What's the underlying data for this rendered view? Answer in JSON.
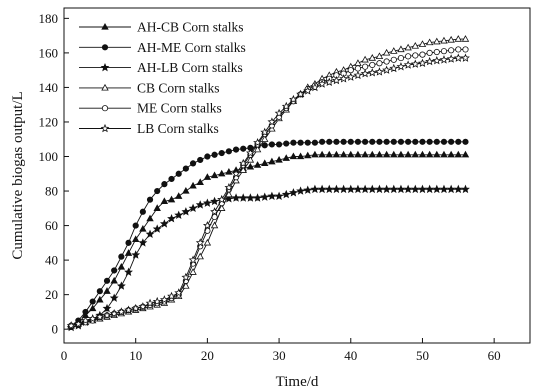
{
  "chart_data": {
    "type": "line",
    "title": "",
    "xlabel": "Time/d",
    "ylabel": "Cumulative biogas output/L",
    "xlim": [
      0,
      65
    ],
    "ylim": [
      -8,
      186
    ],
    "xticks": [
      0,
      10,
      20,
      30,
      40,
      50,
      60
    ],
    "yticks": [
      0,
      20,
      40,
      60,
      80,
      100,
      120,
      140,
      160,
      180
    ],
    "grid": false,
    "legend_position": "top-left",
    "series": [
      {
        "name": "AH-CB Corn stalks",
        "marker": "triangle-filled",
        "x": [
          1,
          2,
          3,
          4,
          5,
          6,
          7,
          8,
          9,
          10,
          11,
          12,
          13,
          14,
          15,
          16,
          17,
          18,
          19,
          20,
          21,
          22,
          23,
          24,
          25,
          26,
          27,
          28,
          29,
          30,
          31,
          32,
          33,
          34,
          35,
          36,
          37,
          38,
          39,
          40,
          41,
          42,
          43,
          44,
          45,
          46,
          47,
          48,
          49,
          50,
          51,
          52,
          53,
          54,
          55,
          56
        ],
        "y": [
          2,
          4,
          8,
          12,
          17,
          22,
          28,
          36,
          44,
          52,
          58,
          64,
          70,
          74,
          75,
          77,
          80,
          83,
          85,
          88,
          89,
          90,
          91,
          92,
          93,
          94,
          95,
          96,
          97,
          98,
          99,
          100,
          100,
          100.5,
          101,
          101,
          101,
          101,
          101,
          101,
          101,
          101,
          101,
          101,
          101,
          101,
          101,
          101,
          101,
          101,
          101,
          101,
          101,
          101,
          101,
          101
        ]
      },
      {
        "name": "AH-ME Corn stalks",
        "marker": "circle-filled",
        "x": [
          1,
          2,
          3,
          4,
          5,
          6,
          7,
          8,
          9,
          10,
          11,
          12,
          13,
          14,
          15,
          16,
          17,
          18,
          19,
          20,
          21,
          22,
          23,
          24,
          25,
          26,
          27,
          28,
          29,
          30,
          31,
          32,
          33,
          34,
          35,
          36,
          37,
          38,
          39,
          40,
          41,
          42,
          43,
          44,
          45,
          46,
          47,
          48,
          49,
          50,
          51,
          52,
          53,
          54,
          55,
          56
        ],
        "y": [
          2,
          5,
          10,
          16,
          22,
          28,
          34,
          42,
          50,
          60,
          68,
          75,
          80,
          84,
          87,
          90,
          93,
          96,
          98,
          100,
          101,
          102,
          103,
          104,
          104.5,
          105,
          106,
          106.5,
          107,
          107,
          107.5,
          108,
          108,
          108,
          108,
          108.5,
          108.5,
          108.5,
          108.5,
          108.5,
          108.5,
          108.5,
          108.5,
          108.5,
          108.5,
          108.5,
          108.5,
          108.5,
          108.5,
          108.5,
          108.5,
          108.5,
          108.5,
          108.5,
          108.5,
          108.5
        ]
      },
      {
        "name": "AH-LB Corn stalks",
        "marker": "star-filled",
        "x": [
          1,
          2,
          3,
          4,
          5,
          6,
          7,
          8,
          9,
          10,
          11,
          12,
          13,
          14,
          15,
          16,
          17,
          18,
          19,
          20,
          21,
          22,
          23,
          24,
          25,
          26,
          27,
          28,
          29,
          30,
          31,
          32,
          33,
          34,
          35,
          36,
          37,
          38,
          39,
          40,
          41,
          42,
          43,
          44,
          45,
          46,
          47,
          48,
          49,
          50,
          51,
          52,
          53,
          54,
          55,
          56
        ],
        "y": [
          1,
          2,
          4,
          6,
          8,
          12,
          18,
          25,
          33,
          43,
          50,
          55,
          58,
          61,
          64,
          66,
          68,
          70,
          72,
          73,
          74,
          75,
          75.5,
          76,
          76,
          76,
          76,
          76.5,
          77,
          77,
          78,
          79,
          80,
          80.5,
          81,
          81,
          81,
          81,
          81,
          81,
          81,
          81,
          81,
          81,
          81,
          81,
          81,
          81,
          81,
          81,
          81,
          81,
          81,
          81,
          81,
          81
        ]
      },
      {
        "name": "CB Corn stalks",
        "marker": "triangle-open",
        "x": [
          1,
          2,
          3,
          4,
          5,
          6,
          7,
          8,
          9,
          10,
          11,
          12,
          13,
          14,
          15,
          16,
          17,
          18,
          19,
          20,
          21,
          22,
          23,
          24,
          25,
          26,
          27,
          28,
          29,
          30,
          31,
          32,
          33,
          34,
          35,
          36,
          37,
          38,
          39,
          40,
          41,
          42,
          43,
          44,
          45,
          46,
          47,
          48,
          49,
          50,
          51,
          52,
          53,
          54,
          55,
          56
        ],
        "y": [
          2,
          3,
          4,
          5,
          6,
          7,
          8,
          9,
          10,
          11,
          12,
          13,
          14,
          15,
          17,
          19,
          25,
          33,
          42,
          50,
          60,
          70,
          78,
          86,
          92,
          98,
          104,
          110,
          116,
          122,
          127,
          132,
          136,
          140,
          142,
          145,
          147,
          149,
          150,
          152,
          154,
          156,
          157,
          158,
          160,
          161,
          162,
          163,
          164,
          165,
          166,
          166.5,
          167,
          167.5,
          168,
          168
        ]
      },
      {
        "name": "ME Corn stalks",
        "marker": "circle-open",
        "x": [
          1,
          2,
          3,
          4,
          5,
          6,
          7,
          8,
          9,
          10,
          11,
          12,
          13,
          14,
          15,
          16,
          17,
          18,
          19,
          20,
          21,
          22,
          23,
          24,
          25,
          26,
          27,
          28,
          29,
          30,
          31,
          32,
          33,
          34,
          35,
          36,
          37,
          38,
          39,
          40,
          41,
          42,
          43,
          44,
          45,
          46,
          47,
          48,
          49,
          50,
          51,
          52,
          53,
          54,
          55,
          56
        ],
        "y": [
          2,
          3,
          4,
          5,
          7,
          8,
          9,
          10,
          11,
          12,
          13,
          14,
          15,
          16,
          18,
          20,
          28,
          38,
          48,
          57,
          65,
          73,
          81,
          88,
          95,
          101,
          107,
          113,
          118,
          123,
          128,
          132,
          136,
          139,
          141,
          143,
          145,
          147,
          148,
          150,
          151,
          152,
          153,
          154,
          155,
          156,
          157,
          158,
          158.5,
          159,
          160,
          160.5,
          161,
          161.5,
          162,
          162
        ]
      },
      {
        "name": "LB Corn stalks",
        "marker": "star-open",
        "x": [
          1,
          2,
          3,
          4,
          5,
          6,
          7,
          8,
          9,
          10,
          11,
          12,
          13,
          14,
          15,
          16,
          17,
          18,
          19,
          20,
          21,
          22,
          23,
          24,
          25,
          26,
          27,
          28,
          29,
          30,
          31,
          32,
          33,
          34,
          35,
          36,
          37,
          38,
          39,
          40,
          41,
          42,
          43,
          44,
          45,
          46,
          47,
          48,
          49,
          50,
          51,
          52,
          53,
          54,
          55,
          56
        ],
        "y": [
          2,
          3,
          5,
          6,
          7,
          8,
          9,
          10,
          11,
          12,
          13,
          15,
          16,
          17,
          19,
          21,
          30,
          40,
          50,
          60,
          68,
          75,
          82,
          90,
          96,
          102,
          108,
          114,
          120,
          125,
          129,
          133,
          136,
          138,
          140,
          142,
          143,
          144,
          145,
          146,
          147,
          148,
          148.5,
          149,
          150,
          151,
          152,
          153,
          153.5,
          154,
          155,
          155.5,
          156,
          156.5,
          157,
          157
        ]
      }
    ]
  }
}
